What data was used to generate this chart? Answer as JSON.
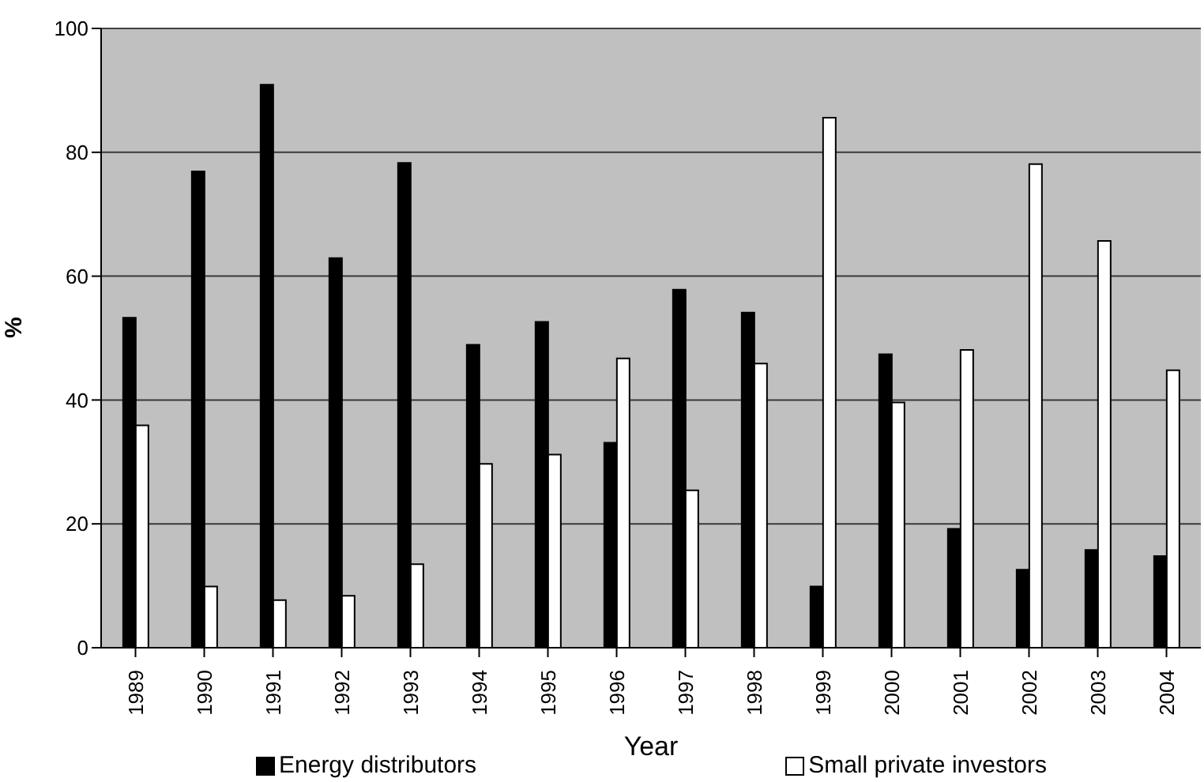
{
  "chart_data": {
    "type": "bar",
    "xlabel": "Year",
    "ylabel": "%",
    "categories": [
      "1989",
      "1990",
      "1991",
      "1992",
      "1993",
      "1994",
      "1995",
      "1996",
      "1997",
      "1998",
      "1999",
      "2000",
      "2001",
      "2002",
      "2003",
      "2004"
    ],
    "series": [
      {
        "name": "Energy distributors",
        "color": "#000000",
        "values": [
          53.3,
          76.9,
          90.9,
          62.9,
          78.3,
          48.9,
          52.6,
          33.1,
          57.8,
          54.1,
          9.9,
          47.4,
          19.2,
          12.6,
          15.8,
          14.8
        ]
      },
      {
        "name": "Small private investors",
        "color": "#ffffff",
        "values": [
          35.9,
          9.9,
          7.7,
          8.4,
          13.5,
          29.7,
          31.2,
          46.7,
          25.4,
          45.9,
          85.6,
          39.6,
          48.1,
          78.1,
          65.7,
          44.8
        ]
      }
    ],
    "ylim": [
      0,
      100
    ],
    "yticks": [
      0,
      20,
      40,
      60,
      80,
      100
    ],
    "grid": "y",
    "legend": "bottom"
  }
}
